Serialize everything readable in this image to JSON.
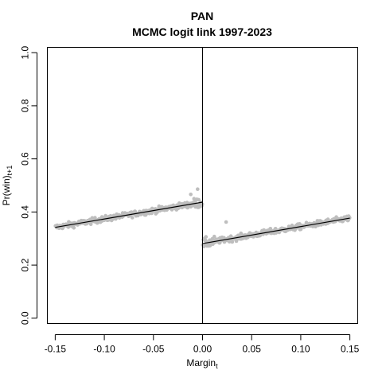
{
  "chart_data": {
    "type": "scatter",
    "title": "PAN",
    "subtitle": "MCMC logit link 1997-2023",
    "xlabel": "Margin",
    "xlabel_subscript": "t",
    "ylabel": "Pr(win)",
    "ylabel_subscript": "t+1",
    "xlim": [
      -0.158,
      0.158
    ],
    "ylim": [
      -0.02,
      1.02
    ],
    "x_ticks": [
      -0.15,
      -0.1,
      -0.05,
      0.0,
      0.05,
      0.1,
      0.15
    ],
    "x_tick_labels": [
      "-0.15",
      "-0.10",
      "-0.05",
      "0.00",
      "0.05",
      "0.10",
      "0.15"
    ],
    "y_ticks": [
      0.0,
      0.2,
      0.4,
      0.6,
      0.8,
      1.0
    ],
    "y_tick_labels": [
      "0.0",
      "0.2",
      "0.4",
      "0.6",
      "0.8",
      "1.0"
    ],
    "grid": false,
    "cutoff_x": 0.0,
    "point_color": "#bebebe",
    "line_color": "#000000",
    "fit_lines": [
      {
        "x": [
          -0.15,
          0.0
        ],
        "y": [
          0.342,
          0.437
        ]
      },
      {
        "x": [
          0.0,
          0.15
        ],
        "y": [
          0.281,
          0.377
        ]
      }
    ],
    "sample_points": [
      {
        "x": [
          -0.15,
          -0.12,
          -0.09,
          -0.06,
          -0.03,
          -0.005
        ],
        "y": [
          0.342,
          0.361,
          0.38,
          0.399,
          0.418,
          0.434
        ]
      },
      {
        "x": [
          0.005,
          0.03,
          0.06,
          0.09,
          0.12,
          0.15
        ],
        "y": [
          0.284,
          0.3,
          0.319,
          0.339,
          0.358,
          0.377
        ]
      }
    ]
  }
}
